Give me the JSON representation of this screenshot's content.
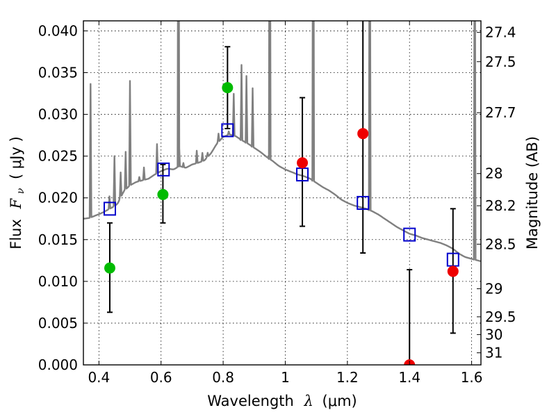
{
  "chart_data": {
    "type": "scatter",
    "xlabel": {
      "text": "Wavelength",
      "symbol": "λ",
      "unit": "(μm)"
    },
    "ylabel": {
      "text": "Flux",
      "symbol": "F",
      "subscript": "ν",
      "unit": "( μJy )"
    },
    "ylabel_right": "Magnitude (AB)",
    "xlim": [
      0.35,
      1.63
    ],
    "ylim": [
      0.0,
      0.0412
    ],
    "x_ticks": [
      0.4,
      0.6,
      0.8,
      1.0,
      1.2,
      1.4,
      1.6
    ],
    "x_tick_labels": [
      "0.4",
      "0.6",
      "0.8",
      "1",
      "1.2",
      "1.4",
      "1.6"
    ],
    "y_ticks": [
      0.0,
      0.005,
      0.01,
      0.015,
      0.02,
      0.025,
      0.03,
      0.035,
      0.04
    ],
    "y_tick_labels": [
      "0.000",
      "0.005",
      "0.010",
      "0.015",
      "0.020",
      "0.025",
      "0.030",
      "0.035",
      "0.040"
    ],
    "mag_ticks": [
      27.4,
      27.5,
      27.7,
      28,
      28.2,
      28.5,
      29,
      29.5,
      30,
      31
    ],
    "mag_tick_labels": [
      "27.4",
      "27.5",
      "27.7",
      "28",
      "28.2",
      "28.5",
      "29",
      "29.5",
      "30",
      "31"
    ],
    "grid": true,
    "colors": {
      "spectrum": "#808080",
      "model": "#0000cc",
      "detected": "#00bb00",
      "measured": "#ee0000",
      "errorbar": "#000000"
    },
    "series": [
      {
        "kind": "line",
        "points": [
          [
            0.35,
            0.0175
          ],
          [
            0.37,
            0.0176
          ],
          [
            0.39,
            0.0179
          ],
          [
            0.41,
            0.0182
          ],
          [
            0.43,
            0.0186
          ],
          [
            0.45,
            0.019
          ],
          [
            0.46,
            0.0193
          ],
          [
            0.48,
            0.0208
          ],
          [
            0.5,
            0.0215
          ],
          [
            0.52,
            0.0219
          ],
          [
            0.54,
            0.0221
          ],
          [
            0.56,
            0.0223
          ],
          [
            0.58,
            0.0228
          ],
          [
            0.6,
            0.0232
          ],
          [
            0.62,
            0.0235
          ],
          [
            0.64,
            0.0234
          ],
          [
            0.66,
            0.0238
          ],
          [
            0.68,
            0.0236
          ],
          [
            0.7,
            0.024
          ],
          [
            0.72,
            0.0242
          ],
          [
            0.74,
            0.0245
          ],
          [
            0.76,
            0.0253
          ],
          [
            0.78,
            0.0265
          ],
          [
            0.8,
            0.0273
          ],
          [
            0.82,
            0.0276
          ],
          [
            0.84,
            0.0274
          ],
          [
            0.86,
            0.0269
          ],
          [
            0.88,
            0.0265
          ],
          [
            0.9,
            0.026
          ],
          [
            0.92,
            0.0255
          ],
          [
            0.94,
            0.0249
          ],
          [
            0.96,
            0.0244
          ],
          [
            0.98,
            0.0238
          ],
          [
            1.0,
            0.0234
          ],
          [
            1.02,
            0.0231
          ],
          [
            1.04,
            0.0228
          ],
          [
            1.06,
            0.0226
          ],
          [
            1.08,
            0.0223
          ],
          [
            1.1,
            0.0218
          ],
          [
            1.12,
            0.0213
          ],
          [
            1.14,
            0.0209
          ],
          [
            1.16,
            0.0204
          ],
          [
            1.18,
            0.0198
          ],
          [
            1.2,
            0.0194
          ],
          [
            1.22,
            0.0191
          ],
          [
            1.24,
            0.0189
          ],
          [
            1.26,
            0.0187
          ],
          [
            1.28,
            0.0184
          ],
          [
            1.3,
            0.018
          ],
          [
            1.32,
            0.0175
          ],
          [
            1.34,
            0.017
          ],
          [
            1.36,
            0.0165
          ],
          [
            1.38,
            0.0161
          ],
          [
            1.4,
            0.0157
          ],
          [
            1.42,
            0.0155
          ],
          [
            1.44,
            0.0152
          ],
          [
            1.46,
            0.015
          ],
          [
            1.48,
            0.0148
          ],
          [
            1.5,
            0.0146
          ],
          [
            1.52,
            0.0143
          ],
          [
            1.54,
            0.0139
          ],
          [
            1.56,
            0.0133
          ],
          [
            1.58,
            0.0129
          ],
          [
            1.6,
            0.0127
          ],
          [
            1.63,
            0.0124
          ]
        ],
        "emission_lines": [
          [
            0.373,
            0.016
          ],
          [
            0.434,
            0.0015
          ],
          [
            0.45,
            0.006
          ],
          [
            0.47,
            0.003
          ],
          [
            0.486,
            0.0045
          ],
          [
            0.5,
            0.0125
          ],
          [
            0.53,
            0.0005
          ],
          [
            0.545,
            0.0015
          ],
          [
            0.587,
            0.0035
          ],
          [
            0.656,
            0.05
          ],
          [
            0.658,
            0.003
          ],
          [
            0.672,
            0.0005
          ],
          [
            0.715,
            0.0015
          ],
          [
            0.733,
            0.001
          ],
          [
            0.75,
            0.0005
          ],
          [
            0.785,
            0.001
          ],
          [
            0.818,
            0.0004
          ],
          [
            0.834,
            0.005
          ],
          [
            0.859,
            0.009
          ],
          [
            0.875,
            0.008
          ],
          [
            0.895,
            0.007
          ],
          [
            0.95,
            0.05
          ],
          [
            1.09,
            0.05
          ],
          [
            1.1,
            0.0
          ],
          [
            1.272,
            0.05
          ],
          [
            1.45,
            0.0
          ],
          [
            1.5,
            0.0
          ],
          [
            1.6,
            0.0
          ],
          [
            1.61,
            0.05
          ]
        ]
      },
      {
        "kind": "errorbar",
        "points": [
          {
            "x": 0.435,
            "y": 0.0116,
            "err_lo": 0.0053,
            "err_hi": 0.0054
          },
          {
            "x": 0.606,
            "y": 0.0204,
            "err_lo": 0.0034,
            "err_hi": 0.0036
          },
          {
            "x": 0.814,
            "y": 0.0332,
            "err_lo": 0.0049,
            "err_hi": 0.0049
          },
          {
            "x": 1.055,
            "y": 0.0242,
            "err_lo": 0.0076,
            "err_hi": 0.0078
          },
          {
            "x": 1.25,
            "y": 0.0277,
            "err_lo": 0.0143,
            "err_hi": 0.0143
          },
          {
            "x": 1.4,
            "y": 0.0,
            "err_lo": 0.0,
            "err_hi": 0.0114
          },
          {
            "x": 1.54,
            "y": 0.0112,
            "err_lo": 0.0074,
            "err_hi": 0.0075
          }
        ]
      },
      {
        "kind": "marker",
        "marker": "square-open",
        "points": [
          {
            "x": 0.435,
            "y": 0.0187
          },
          {
            "x": 0.608,
            "y": 0.0234
          },
          {
            "x": 0.814,
            "y": 0.0281
          },
          {
            "x": 1.055,
            "y": 0.0228
          },
          {
            "x": 1.25,
            "y": 0.0194
          },
          {
            "x": 1.4,
            "y": 0.0156
          },
          {
            "x": 1.54,
            "y": 0.0126
          }
        ]
      },
      {
        "kind": "marker",
        "marker": "circle",
        "points": [
          {
            "x": 0.435,
            "y": 0.0116
          },
          {
            "x": 0.606,
            "y": 0.0204
          },
          {
            "x": 0.814,
            "y": 0.0332
          }
        ]
      },
      {
        "kind": "marker",
        "marker": "circle",
        "points": [
          {
            "x": 1.055,
            "y": 0.0242
          },
          {
            "x": 1.25,
            "y": 0.0277
          },
          {
            "x": 1.4,
            "y": 0.0
          },
          {
            "x": 1.54,
            "y": 0.0112
          }
        ]
      }
    ]
  }
}
